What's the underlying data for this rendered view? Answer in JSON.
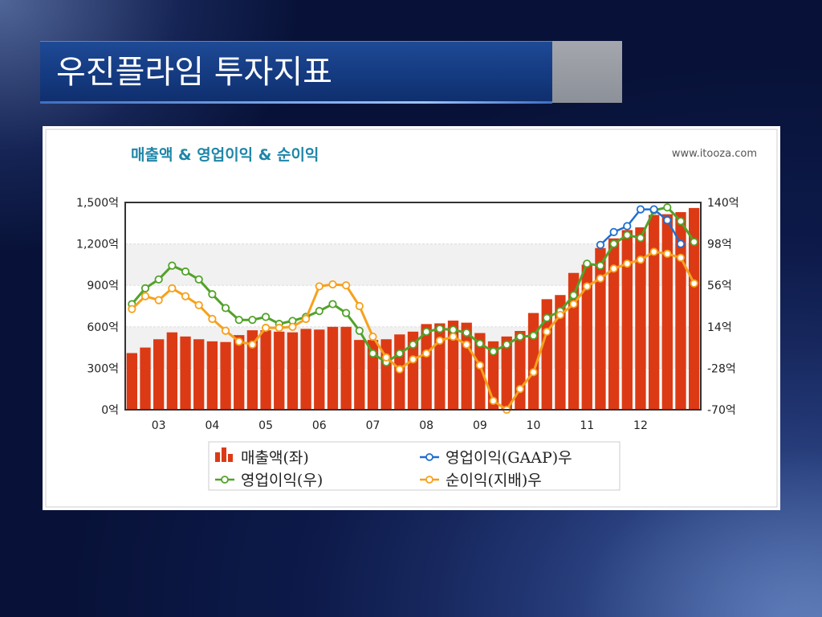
{
  "slide": {
    "title": "우진플라임 투자지표"
  },
  "chart_data": {
    "type": "bar",
    "title": "매출액 & 영업이익 & 순이익",
    "source": "www.itooza.com",
    "x_tick_labels": [
      "03",
      "04",
      "05",
      "06",
      "07",
      "08",
      "09",
      "10",
      "11",
      "12"
    ],
    "x_tick_start_index": 2,
    "x_tick_step": 4,
    "y_left": {
      "range": [
        0,
        1500
      ],
      "ticks": [
        0,
        300,
        600,
        900,
        1200,
        1500
      ],
      "tick_labels": [
        "0억",
        "300억",
        "600억",
        "900억",
        "1,200억",
        "1,500억"
      ]
    },
    "y_right": {
      "range": [
        -70,
        140
      ],
      "ticks": [
        -70,
        -28,
        14,
        56,
        98,
        140
      ],
      "tick_labels": [
        "-70억",
        "-28억",
        "14억",
        "56억",
        "98억",
        "140억"
      ]
    },
    "grid": true,
    "legend_placement": "bottom-center",
    "colors": {
      "revenue": "#dc3a14",
      "op_gaap": "#1f6fd0",
      "op": "#52a22a",
      "net": "#f6a11c",
      "plot_grid": "#dddddd",
      "title": "#1e86a8"
    },
    "series": [
      {
        "name": "매출액(좌)",
        "axis": "left",
        "kind": "bar",
        "values": [
          410,
          450,
          510,
          560,
          530,
          510,
          495,
          490,
          540,
          575,
          575,
          565,
          560,
          585,
          580,
          600,
          600,
          505,
          505,
          510,
          545,
          565,
          620,
          625,
          645,
          630,
          555,
          495,
          530,
          570,
          700,
          800,
          830,
          990,
          1050,
          1170,
          1240,
          1300,
          1320,
          1410,
          1415,
          1430,
          1460
        ]
      },
      {
        "name": "영업이익(GAAP)우",
        "axis": "right",
        "kind": "line",
        "values": [
          null,
          null,
          null,
          null,
          null,
          null,
          null,
          null,
          null,
          null,
          null,
          null,
          null,
          null,
          null,
          null,
          null,
          null,
          null,
          null,
          null,
          null,
          null,
          null,
          null,
          null,
          null,
          null,
          null,
          null,
          null,
          null,
          null,
          null,
          null,
          97,
          110,
          116,
          133,
          133,
          122,
          98
        ]
      },
      {
        "name": "영업이익(우)",
        "axis": "right",
        "kind": "line",
        "values": [
          37,
          53,
          62,
          76,
          70,
          62,
          47,
          33,
          21,
          21,
          24,
          17,
          20,
          24,
          30,
          37,
          28,
          10,
          -13,
          -22,
          -13,
          -4,
          9,
          12,
          11,
          8,
          -3,
          -11,
          -4,
          4,
          5,
          23,
          30,
          46,
          78,
          76,
          98,
          107,
          104,
          132,
          135,
          121,
          100
        ]
      },
      {
        "name": "순이익(지배)우",
        "axis": "right",
        "kind": "line",
        "values": [
          32,
          45,
          41,
          53,
          45,
          36,
          22,
          10,
          -1,
          -4,
          13,
          13,
          14,
          22,
          55,
          57,
          56,
          35,
          4,
          -17,
          -29,
          -19,
          -13,
          0,
          4,
          -4,
          -25,
          -61,
          -70,
          -49,
          -32,
          9,
          26,
          37,
          55,
          63,
          73,
          78,
          82,
          90,
          88,
          84,
          58
        ]
      }
    ]
  }
}
